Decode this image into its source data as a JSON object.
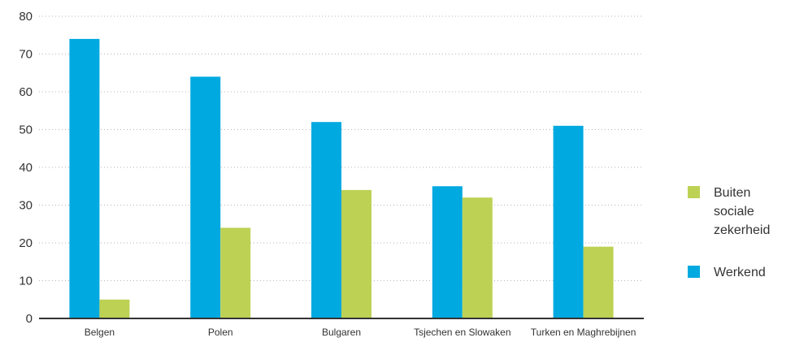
{
  "chart_data": {
    "type": "bar",
    "categories": [
      "Belgen",
      "Polen",
      "Bulgaren",
      "Tsjechen en Slowaken",
      "Turken en Maghrebijnen"
    ],
    "series": [
      {
        "name": "Werkend",
        "color": "#00a9e0",
        "values": [
          74,
          64,
          52,
          35,
          51
        ]
      },
      {
        "name": "Buiten sociale zekerheid",
        "color": "#bdd154",
        "values": [
          5,
          24,
          34,
          32,
          19
        ]
      }
    ],
    "ylim": [
      0,
      80
    ],
    "yticks": [
      0,
      10,
      20,
      30,
      40,
      50,
      60,
      70,
      80
    ],
    "grid": true,
    "legend_position": "right",
    "legend": [
      {
        "series": 1,
        "lines": [
          "Buiten",
          "sociale",
          "zekerheid"
        ]
      },
      {
        "series": 0,
        "lines": [
          "Werkend"
        ]
      }
    ]
  }
}
